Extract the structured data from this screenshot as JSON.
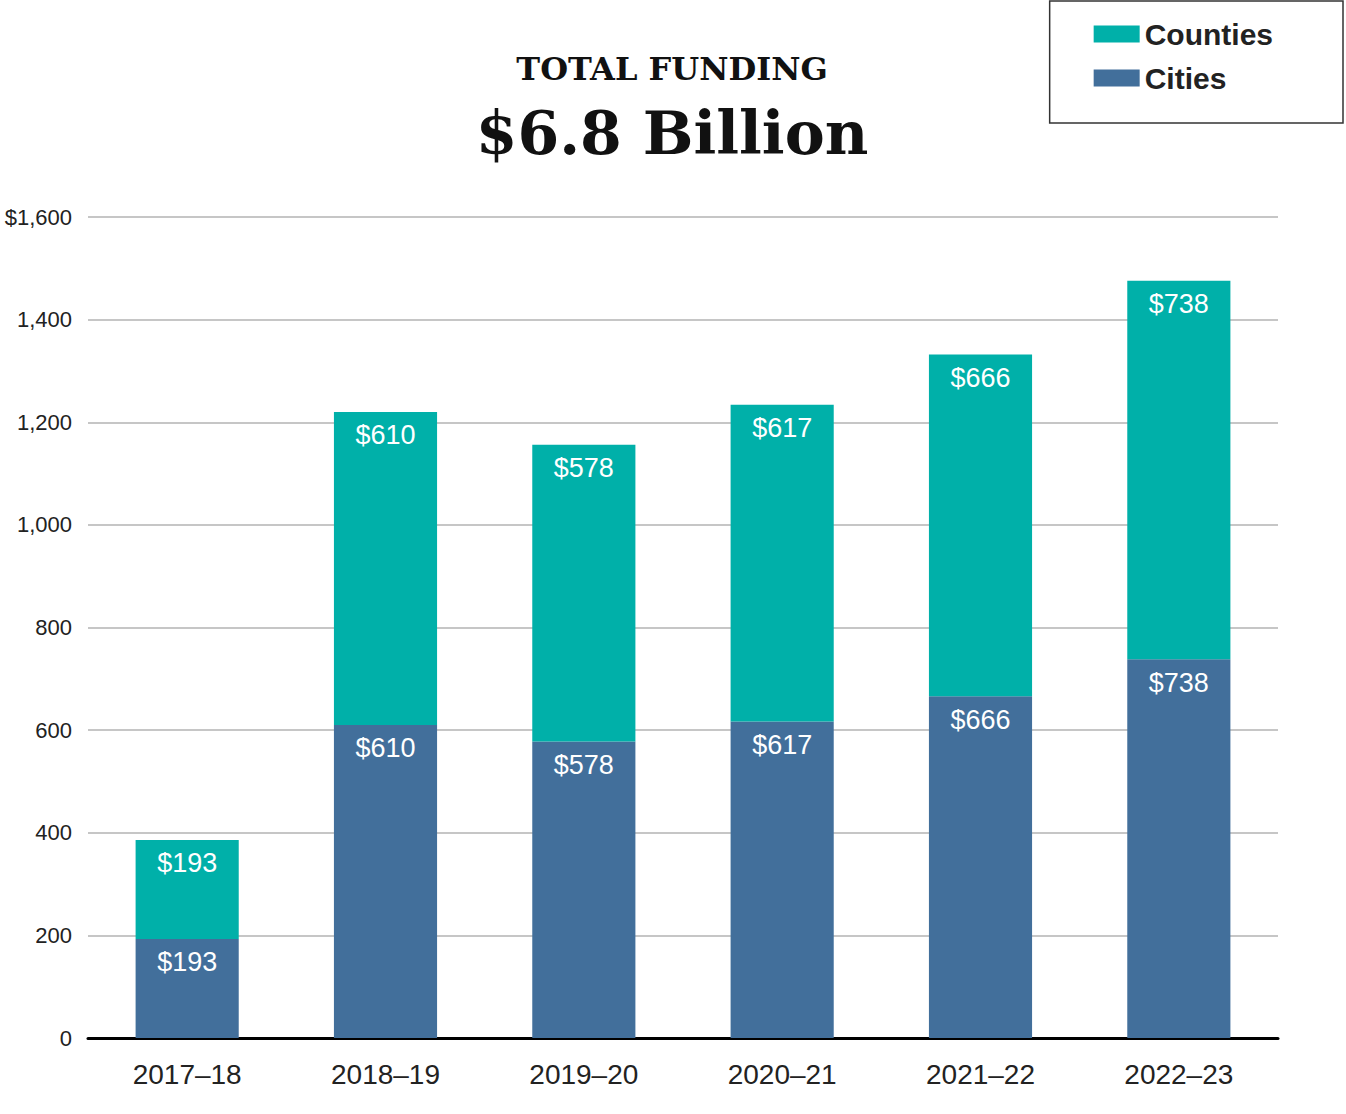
{
  "chart_data": {
    "type": "bar",
    "title": "TOTAL FUNDING",
    "subtitle": "$6.8 Billion",
    "categories": [
      "2017–18",
      "2018–19",
      "2019–20",
      "2020–21",
      "2021–22",
      "2022–23"
    ],
    "series": [
      {
        "name": "Cities",
        "color": "#426f9b",
        "values": [
          193,
          610,
          578,
          617,
          666,
          738
        ],
        "value_labels": [
          "$193",
          "$610",
          "$578",
          "$617",
          "$666",
          "$738"
        ]
      },
      {
        "name": "Counties",
        "color": "#00b0a9",
        "values": [
          193,
          610,
          578,
          617,
          666,
          738
        ],
        "value_labels": [
          "$193",
          "$610",
          "$578",
          "$617",
          "$666",
          "$738"
        ]
      }
    ],
    "ylim": [
      0,
      1600
    ],
    "yticks": [
      0,
      200,
      400,
      600,
      800,
      {
        "value": 1000,
        "label": "1,000"
      },
      {
        "value": 1200,
        "label": "1,200"
      },
      {
        "value": 1400,
        "label": "1,400"
      },
      {
        "value": 1600,
        "label": "$1,600"
      }
    ],
    "stacked": true,
    "data_labels": true,
    "grid": true,
    "legend": "top-right"
  }
}
